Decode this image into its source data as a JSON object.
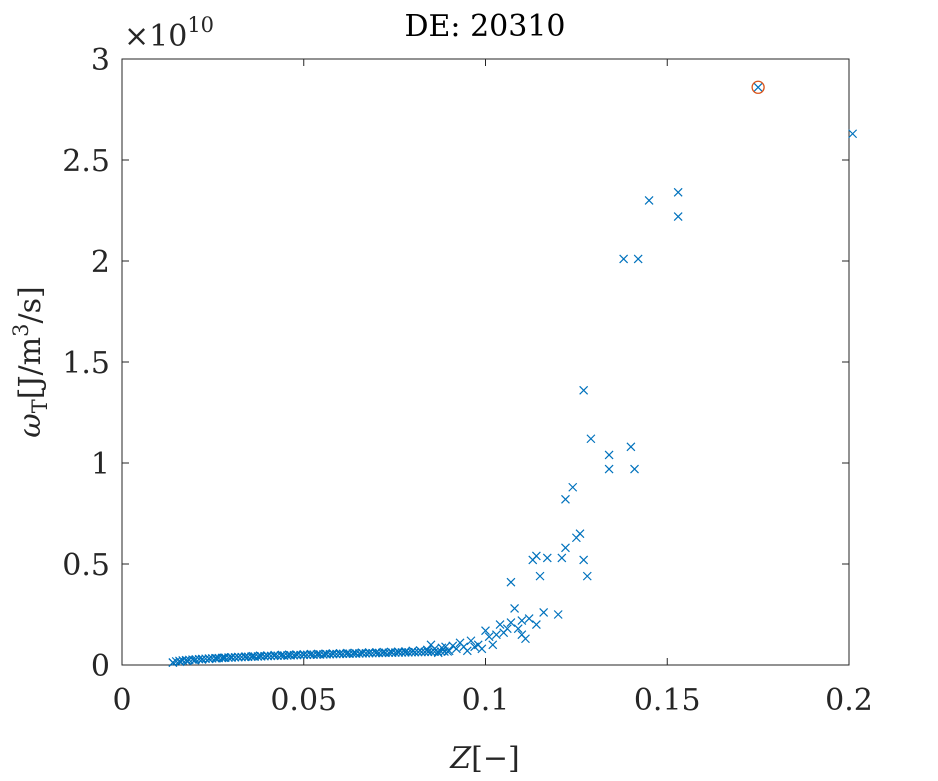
{
  "chart_data": {
    "type": "scatter",
    "title": "DE: 20310",
    "xlabel_main": "Z",
    "xlabel_unit": "[−]",
    "ylabel_main": "ω",
    "ylabel_sub": "T",
    "ylabel_unit_a": "[J/m",
    "ylabel_unit_sup": "3",
    "ylabel_unit_b": "/s]",
    "exponent_base": "×10",
    "exponent_power": "10",
    "xlim": [
      0,
      0.2
    ],
    "ylim": [
      0,
      3
    ],
    "xticks": [
      0,
      0.05,
      0.1,
      0.15,
      0.2
    ],
    "xtick_labels": [
      "0",
      "0.05",
      "0.1",
      "0.15",
      "0.2"
    ],
    "yticks": [
      0,
      0.5,
      1,
      1.5,
      2,
      2.5,
      3
    ],
    "ytick_labels": [
      "0",
      "0.5",
      "1",
      "1.5",
      "2",
      "2.5",
      "3"
    ],
    "grid": false,
    "colors": {
      "series": "#0072bd",
      "highlight": "#d95319",
      "axis": "#262626"
    },
    "series": [
      {
        "marker": "x",
        "x": [
          0.014,
          0.016,
          0.018,
          0.02,
          0.022,
          0.024,
          0.026,
          0.028,
          0.03,
          0.032,
          0.034,
          0.036,
          0.038,
          0.04,
          0.042,
          0.044,
          0.046,
          0.048,
          0.05,
          0.052,
          0.054,
          0.056,
          0.058,
          0.06,
          0.062,
          0.064,
          0.066,
          0.068,
          0.07,
          0.072,
          0.074,
          0.076,
          0.078,
          0.08,
          0.082,
          0.084,
          0.085,
          0.086,
          0.087,
          0.088,
          0.089,
          0.09,
          0.091,
          0.092,
          0.093,
          0.094,
          0.095,
          0.096,
          0.097,
          0.098,
          0.099,
          0.1,
          0.101,
          0.102,
          0.103,
          0.104,
          0.105,
          0.106,
          0.107,
          0.107,
          0.108,
          0.109,
          0.11,
          0.11,
          0.111,
          0.112,
          0.113,
          0.114,
          0.114,
          0.115,
          0.116,
          0.117,
          0.12,
          0.121,
          0.122,
          0.122,
          0.124,
          0.125,
          0.126,
          0.127,
          0.127,
          0.128,
          0.129,
          0.134,
          0.134,
          0.138,
          0.14,
          0.141,
          0.142,
          0.145,
          0.153,
          0.153,
          0.175,
          0.201
        ],
        "y": [
          0.012,
          0.016,
          0.02,
          0.024,
          0.027,
          0.03,
          0.033,
          0.036,
          0.038,
          0.04,
          0.042,
          0.044,
          0.046,
          0.047,
          0.049,
          0.05,
          0.051,
          0.052,
          0.053,
          0.054,
          0.055,
          0.056,
          0.057,
          0.058,
          0.059,
          0.06,
          0.061,
          0.062,
          0.063,
          0.064,
          0.065,
          0.066,
          0.067,
          0.07,
          0.072,
          0.075,
          0.1,
          0.08,
          0.06,
          0.085,
          0.09,
          0.07,
          0.095,
          0.08,
          0.11,
          0.09,
          0.07,
          0.12,
          0.09,
          0.1,
          0.08,
          0.17,
          0.14,
          0.1,
          0.15,
          0.2,
          0.16,
          0.18,
          0.41,
          0.21,
          0.28,
          0.18,
          0.22,
          0.15,
          0.13,
          0.23,
          0.52,
          0.54,
          0.2,
          0.44,
          0.26,
          0.53,
          0.25,
          0.53,
          0.58,
          0.82,
          0.88,
          0.63,
          0.65,
          0.52,
          1.36,
          0.44,
          1.12,
          1.04,
          0.97,
          2.01,
          1.08,
          0.97,
          2.01,
          2.3,
          2.34,
          2.22,
          2.86,
          2.63
        ]
      }
    ],
    "highlight_point": {
      "marker": "circle",
      "x": 0.175,
      "y": 2.86
    }
  }
}
